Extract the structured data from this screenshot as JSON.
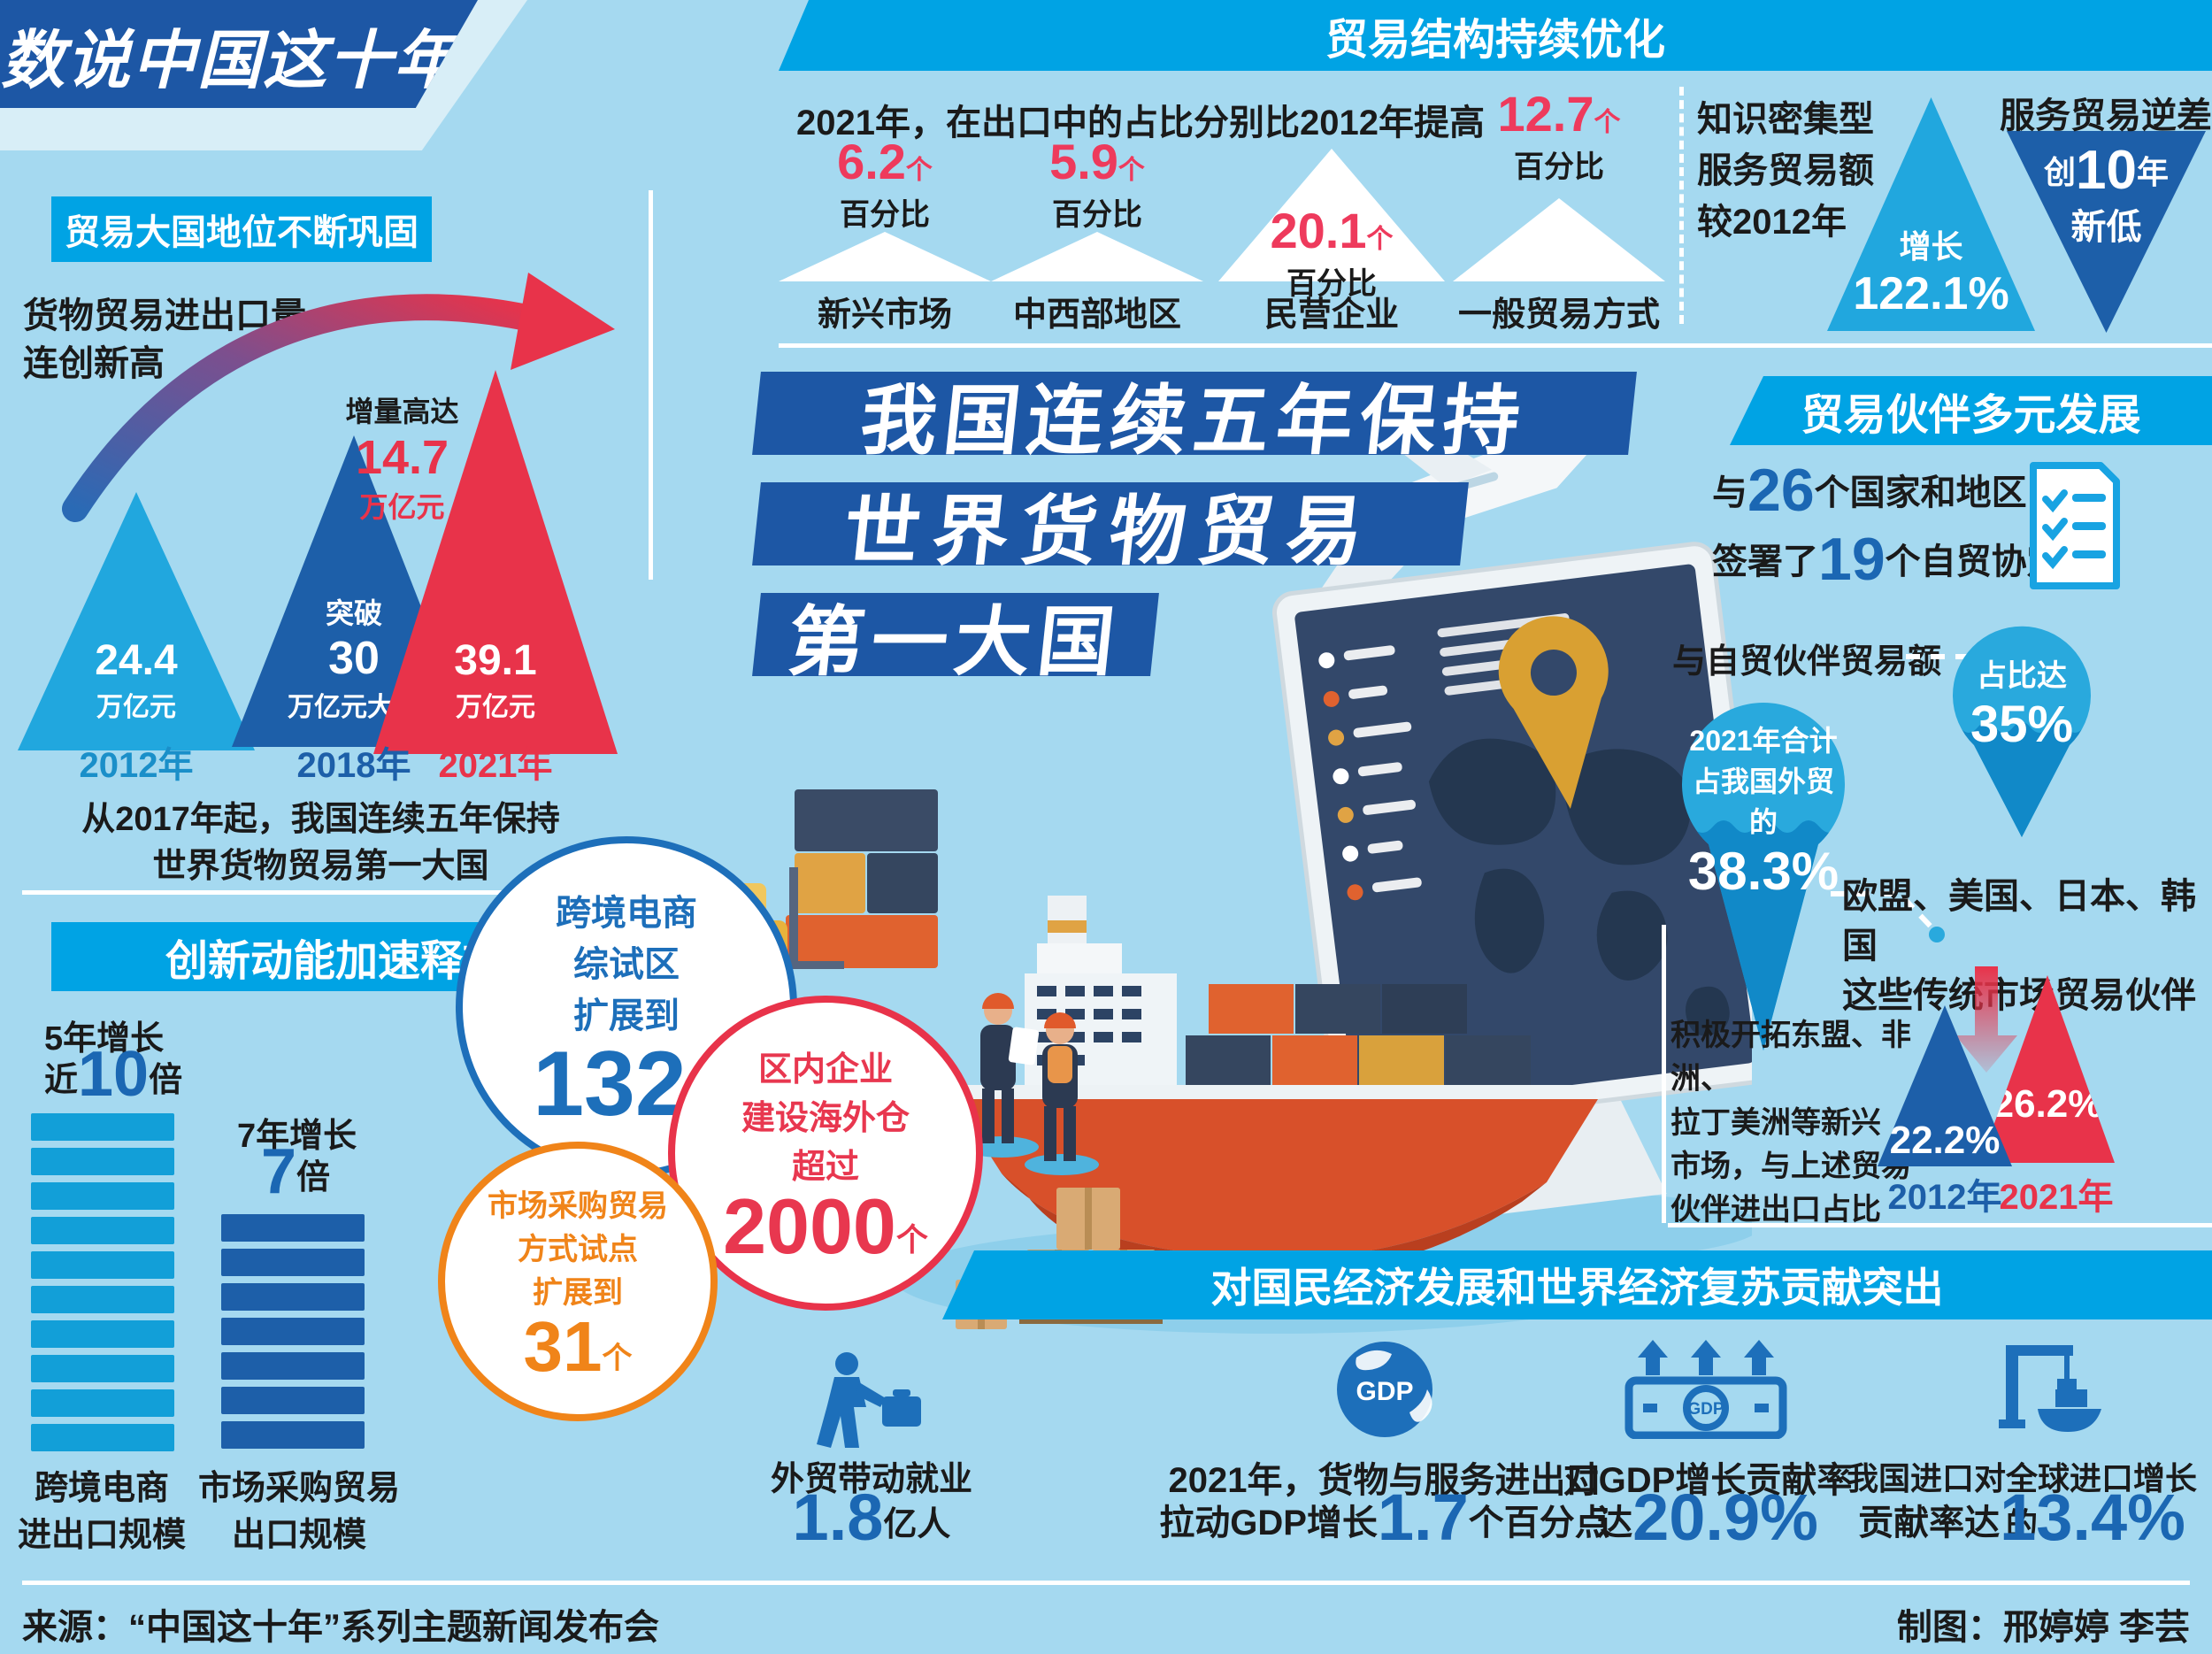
{
  "meta": {
    "title": "数说中国这十年",
    "source": "来源：“中国这十年”系列主题新闻发布会",
    "credit": "制图：邢婷婷  李芸"
  },
  "colors": {
    "background": "#a5d9f0",
    "dark_blue": "#1d57a5",
    "bright_blue": "#00a3e4",
    "light_blue": "#21a7de",
    "mid_blue": "#1d5fa9",
    "number_blue": "#1b67b3",
    "red": "#e8334a",
    "pink_red": "#ee3a5c",
    "orange": "#f08419",
    "gold": "#d9a032",
    "navy": "#33486a"
  },
  "icons": {
    "airplane": "airplane",
    "monitor": "monitor-world-map",
    "map_pin": "map-pin",
    "ship": "container-ship",
    "forklift": "forklift",
    "workers": "dock-workers",
    "boxes": "cargo-boxes",
    "checklist": "fta-checklist-document",
    "drops": "water-drop-pin",
    "employment": "worker-with-briefcase",
    "gdp_globe": "gdp-globe",
    "gdp_money": "gdp-banknote-arrows",
    "import_crane": "port-crane-ship"
  },
  "trade_power": {
    "header": "贸易大国地位不断巩固",
    "intro_line1": "货物贸易进出口量",
    "intro_line2": "连创新高",
    "increment_label": "增量高达",
    "increment_value": "14.7",
    "increment_unit": "万亿元",
    "t2012": {
      "value": "24.4",
      "unit": "万亿元",
      "year": "2012年"
    },
    "t2018": {
      "prefix": "突破",
      "value": "30",
      "unit": "万亿元大关",
      "year": "2018年"
    },
    "t2021": {
      "value": "39.1",
      "unit": "万亿元",
      "year": "2021年"
    },
    "note_line1": "从2017年起，我国连续五年保持",
    "note_line2": "世界货物贸易第一大国"
  },
  "structure": {
    "header": "贸易结构持续优化",
    "intro": "2021年，在出口中的占比分别比2012年提高",
    "items": [
      {
        "value": "6.2",
        "suffix": "个",
        "unit": "百分比",
        "label": "新兴市场"
      },
      {
        "value": "5.9",
        "suffix": "个",
        "unit": "百分比",
        "label": "中西部地区"
      },
      {
        "value": "20.1",
        "suffix": "个",
        "unit": "百分比",
        "label": "民营企业"
      },
      {
        "value": "12.7",
        "suffix": "个",
        "unit": "百分比",
        "label": "一般贸易方式"
      }
    ],
    "knowledge_line1": "知识密集型",
    "knowledge_line2": "服务贸易额",
    "knowledge_line3": "较2012年",
    "growth_label": "增长",
    "growth_value": "122.1%",
    "deficit_title": "服务贸易逆差",
    "deficit_pre": "创",
    "deficit_num": "10",
    "deficit_mid": "年",
    "deficit_post": "新低"
  },
  "headline": {
    "line1": "我国连续五年保持",
    "line2": "世界货物贸易",
    "line3": "第一大国"
  },
  "partners": {
    "header": "贸易伙伴多元发展",
    "fta_pre1": "与",
    "fta_num1": "26",
    "fta_post1": "个国家和地区",
    "fta_pre2": "签署了",
    "fta_num2": "19",
    "fta_post2": "个自贸协定",
    "volume_label": "与自贸伙伴贸易额",
    "drop_small_label": "占比达",
    "drop_small_value": "35%",
    "drop_large_line1": "2021年合计",
    "drop_large_line2": "占我国外贸的",
    "drop_large_value": "38.3%",
    "traditional_line1": "欧盟、美国、日本、韩国",
    "traditional_line2": "这些传统市场贸易伙伴",
    "emerging_line1": "积极开拓东盟、非洲、",
    "emerging_line2": "拉丁美洲等新兴",
    "emerging_line3": "市场，与上述贸易",
    "emerging_line4": "伙伴进出口占比",
    "bar_2012": {
      "value": "22.2%",
      "year": "2012年"
    },
    "bar_2021": {
      "value": "26.2%",
      "year": "2021年"
    }
  },
  "innovation": {
    "header": "创新动能加速释放",
    "left": {
      "growth_label": "5年增长",
      "pre": "近",
      "value": "10",
      "suffix": "倍",
      "bar_count": 10,
      "label_line1": "跨境电商",
      "label_line2": "进出口规模"
    },
    "right": {
      "growth_label": "7年增长",
      "pre": "",
      "value": "7",
      "suffix": "倍",
      "bar_count": 7,
      "label_line1": "市场采购贸易",
      "label_line2": "出口规模"
    }
  },
  "bubbles": {
    "ecommerce": {
      "line1": "跨境电商",
      "line2": "综试区",
      "line3": "扩展到",
      "value": "132",
      "suffix": "个"
    },
    "warehouse": {
      "line1": "区内企业",
      "line2": "建设海外仓",
      "line3": "超过",
      "value": "2000",
      "suffix": "个"
    },
    "procurement": {
      "line1": "市场采购贸易",
      "line2": "方式试点",
      "line3": "扩展到",
      "value": "31",
      "suffix": "个"
    }
  },
  "contribution": {
    "header": "对国民经济发展和世界经济复苏贡献突出",
    "employment": {
      "label": "外贸带动就业",
      "value": "1.8",
      "suffix": "亿人"
    },
    "gdp_pull": {
      "line1": "2021年，货物与服务进出口",
      "pre": "拉动GDP增长",
      "value": "1.7",
      "suffix": "个百分点"
    },
    "gdp_rate": {
      "line1": "对GDP增长贡献率",
      "pre": "达",
      "value": "20.9%"
    },
    "import_rate": {
      "line1": "我国进口对全球进口增长的",
      "pre": "贡献率达",
      "value": "13.4%"
    }
  },
  "chart_data": [
    {
      "type": "bar",
      "style": "triangle-pictogram",
      "title": "货物贸易进出口量连创新高",
      "categories": [
        "2012年",
        "2018年",
        "2021年"
      ],
      "values": [
        24.4,
        30,
        39.1
      ],
      "unit": "万亿元",
      "annotations": [
        "突破30万亿元大关",
        "增量高达14.7万亿元"
      ]
    },
    {
      "type": "bar",
      "style": "triangle-pictogram",
      "title": "2021年，在出口中的占比分别比2012年提高",
      "categories": [
        "新兴市场",
        "中西部地区",
        "民营企业",
        "一般贸易方式"
      ],
      "values": [
        6.2,
        5.9,
        20.1,
        12.7
      ],
      "unit": "个百分比"
    },
    {
      "type": "pictogram",
      "title": "知识密集型服务贸易额较2012年",
      "value_text": "增长122.1%",
      "extra": "服务贸易逆差创10年新低"
    },
    {
      "type": "pictogram",
      "title": "与自贸伙伴贸易额",
      "points": [
        {
          "label": "2021年合计占我国外贸的",
          "value": 38.3
        },
        {
          "label": "占比达",
          "value": 35
        }
      ],
      "unit": "%"
    },
    {
      "type": "bar",
      "style": "triangle-pictogram",
      "title": "与东盟、非洲、拉丁美洲等新兴市场贸易伙伴进出口占比",
      "categories": [
        "2012年",
        "2021年"
      ],
      "values": [
        22.2,
        26.2
      ],
      "unit": "%"
    },
    {
      "type": "pictogram",
      "title": "创新动能加速释放",
      "series": [
        {
          "name": "跨境电商进出口规模",
          "growth": "5年增长近10倍",
          "bars": 10
        },
        {
          "name": "市场采购贸易出口规模",
          "growth": "7年增长7倍",
          "bars": 7
        }
      ],
      "notes": [
        "跨境电商综试区扩展到132个",
        "区内企业建设海外仓超过2000个",
        "市场采购贸易方式试点扩展到31个"
      ]
    },
    {
      "type": "table",
      "title": "对国民经济发展和世界经济复苏贡献突出",
      "rows": [
        [
          "外贸带动就业",
          "1.8亿人"
        ],
        [
          "2021年，货物与服务进出口拉动GDP增长",
          "1.7个百分点"
        ],
        [
          "对GDP增长贡献率",
          "20.9%"
        ],
        [
          "我国进口对全球进口增长的贡献率",
          "13.4%"
        ]
      ]
    }
  ]
}
